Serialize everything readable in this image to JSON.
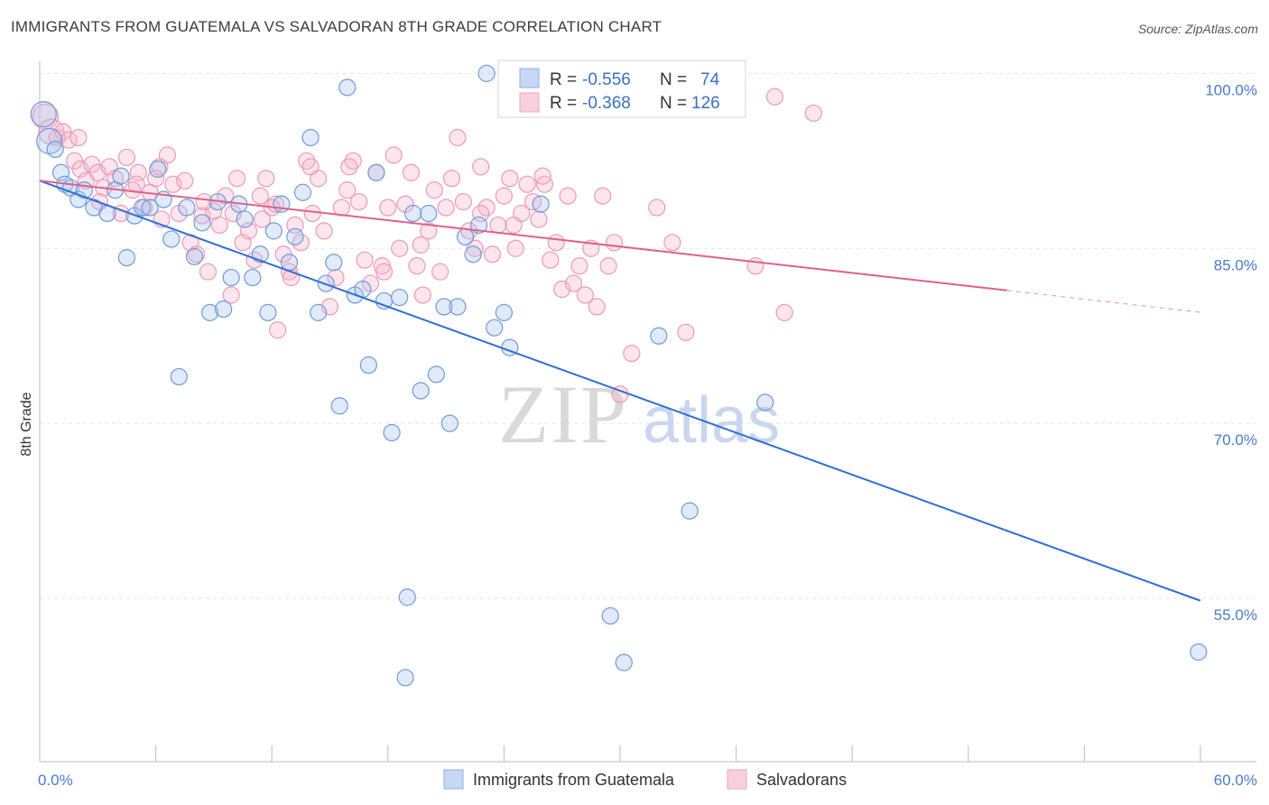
{
  "title": "IMMIGRANTS FROM GUATEMALA VS SALVADORAN 8TH GRADE CORRELATION CHART",
  "source": "Source: ZipAtlas.com",
  "watermark": {
    "part1": "ZIP",
    "part2": "atlas"
  },
  "colors": {
    "blue": "#5b8fd6",
    "blue_line": "#2f6fd0",
    "pink": "#ee93b2",
    "pink_line": "#e0608c",
    "grid": "#e3e3e3",
    "tick_text": "#4a7bc8"
  },
  "chart_data": {
    "type": "scatter",
    "title": "IMMIGRANTS FROM GUATEMALA VS SALVADORAN 8TH GRADE CORRELATION CHART",
    "xlabel": "",
    "ylabel": "8th Grade",
    "xlim": [
      0,
      60
    ],
    "ylim": [
      41,
      101.5
    ],
    "x_tick_labels": [
      {
        "value": 0,
        "label": "0.0%"
      },
      {
        "value": 60,
        "label": "60.0%"
      }
    ],
    "y_tick_labels": [
      {
        "value": 100,
        "label": "100.0%"
      },
      {
        "value": 85,
        "label": "85.0%"
      },
      {
        "value": 70,
        "label": "70.0%"
      },
      {
        "value": 55,
        "label": "55.0%"
      }
    ],
    "legend_position": "bottom",
    "stats": [
      {
        "r_label": "R = ",
        "r": "-0.556",
        "n_label": "N = ",
        "n": "74"
      },
      {
        "r_label": "R = ",
        "r": "-0.368",
        "n_label": "N = ",
        "n": "126"
      }
    ],
    "series": [
      {
        "name": "Immigrants from Guatemala",
        "color": "#5b8fd6",
        "trend": {
          "x0": 0,
          "y0": 90.8,
          "x1": 60,
          "y1": 54.8
        },
        "points": [
          [
            0.2,
            96.5
          ],
          [
            0.5,
            94.2
          ],
          [
            0.8,
            93.5
          ],
          [
            1.1,
            91.5
          ],
          [
            1.3,
            90.5
          ],
          [
            1.6,
            90.2
          ],
          [
            2.0,
            89.2
          ],
          [
            2.3,
            90.0
          ],
          [
            2.8,
            88.5
          ],
          [
            3.5,
            88.0
          ],
          [
            3.9,
            90.0
          ],
          [
            4.2,
            91.2
          ],
          [
            4.5,
            84.2
          ],
          [
            4.9,
            87.8
          ],
          [
            5.3,
            88.5
          ],
          [
            5.7,
            88.5
          ],
          [
            6.1,
            91.8
          ],
          [
            6.4,
            89.2
          ],
          [
            6.8,
            85.8
          ],
          [
            7.2,
            74.0
          ],
          [
            7.6,
            88.5
          ],
          [
            8.0,
            84.3
          ],
          [
            8.4,
            87.2
          ],
          [
            8.8,
            79.5
          ],
          [
            9.2,
            89.0
          ],
          [
            9.5,
            79.8
          ],
          [
            9.9,
            82.5
          ],
          [
            10.3,
            88.8
          ],
          [
            10.6,
            87.5
          ],
          [
            11.0,
            82.5
          ],
          [
            11.4,
            84.5
          ],
          [
            11.8,
            79.5
          ],
          [
            12.1,
            86.5
          ],
          [
            12.5,
            88.8
          ],
          [
            12.9,
            83.8
          ],
          [
            13.2,
            86.0
          ],
          [
            13.6,
            89.8
          ],
          [
            14.0,
            94.5
          ],
          [
            14.4,
            79.5
          ],
          [
            14.8,
            82.0
          ],
          [
            15.2,
            83.8
          ],
          [
            15.5,
            71.5
          ],
          [
            15.9,
            98.8
          ],
          [
            16.3,
            81.0
          ],
          [
            16.7,
            81.5
          ],
          [
            17.0,
            75.0
          ],
          [
            17.4,
            91.5
          ],
          [
            17.8,
            80.5
          ],
          [
            18.2,
            69.2
          ],
          [
            18.6,
            80.8
          ],
          [
            18.9,
            48.2
          ],
          [
            19.0,
            55.1
          ],
          [
            19.3,
            88.0
          ],
          [
            19.7,
            72.8
          ],
          [
            20.1,
            88.0
          ],
          [
            20.5,
            74.2
          ],
          [
            20.9,
            80.0
          ],
          [
            21.2,
            70.0
          ],
          [
            21.6,
            80.0
          ],
          [
            22.0,
            86.0
          ],
          [
            22.4,
            84.5
          ],
          [
            22.7,
            87.0
          ],
          [
            23.1,
            100.0
          ],
          [
            23.5,
            78.2
          ],
          [
            24.0,
            79.5
          ],
          [
            24.3,
            76.5
          ],
          [
            25.0,
            100.0
          ],
          [
            25.9,
            88.8
          ],
          [
            27.5,
            100.0
          ],
          [
            29.5,
            53.5
          ],
          [
            30.2,
            49.5
          ],
          [
            32.0,
            77.5
          ],
          [
            33.6,
            62.5
          ],
          [
            37.5,
            71.8
          ],
          [
            59.9,
            50.4
          ]
        ]
      },
      {
        "name": "Salvadorans",
        "color": "#ee93b2",
        "trend": {
          "x0": 0,
          "y0": 90.8,
          "x1": 50,
          "y1": 81.4
        },
        "points": [
          [
            0.3,
            96.3
          ],
          [
            0.6,
            95.0
          ],
          [
            0.9,
            94.5
          ],
          [
            1.2,
            95.0
          ],
          [
            1.5,
            94.3
          ],
          [
            1.8,
            92.5
          ],
          [
            2.1,
            91.8
          ],
          [
            2.4,
            90.8
          ],
          [
            2.7,
            92.2
          ],
          [
            3.0,
            91.5
          ],
          [
            3.3,
            90.2
          ],
          [
            3.6,
            92.0
          ],
          [
            3.9,
            91.0
          ],
          [
            4.2,
            88.0
          ],
          [
            4.5,
            92.8
          ],
          [
            4.8,
            90.0
          ],
          [
            5.1,
            91.5
          ],
          [
            5.4,
            88.5
          ],
          [
            5.7,
            89.8
          ],
          [
            6.0,
            91.0
          ],
          [
            6.3,
            87.5
          ],
          [
            6.6,
            93.0
          ],
          [
            6.9,
            90.5
          ],
          [
            7.2,
            88.0
          ],
          [
            7.5,
            90.8
          ],
          [
            7.8,
            85.5
          ],
          [
            8.1,
            84.5
          ],
          [
            8.4,
            87.8
          ],
          [
            8.7,
            83.0
          ],
          [
            9.0,
            88.2
          ],
          [
            9.3,
            87.0
          ],
          [
            9.6,
            89.5
          ],
          [
            9.9,
            81.0
          ],
          [
            10.2,
            91.0
          ],
          [
            10.5,
            85.5
          ],
          [
            10.8,
            86.5
          ],
          [
            11.1,
            84.0
          ],
          [
            11.4,
            89.5
          ],
          [
            11.7,
            91.0
          ],
          [
            12.0,
            88.5
          ],
          [
            12.3,
            78.0
          ],
          [
            12.6,
            84.5
          ],
          [
            12.9,
            83.0
          ],
          [
            13.2,
            87.0
          ],
          [
            13.5,
            85.5
          ],
          [
            13.8,
            92.5
          ],
          [
            14.1,
            88.0
          ],
          [
            14.4,
            91.0
          ],
          [
            14.7,
            86.5
          ],
          [
            15.0,
            80.0
          ],
          [
            15.3,
            82.5
          ],
          [
            15.6,
            88.5
          ],
          [
            15.9,
            90.0
          ],
          [
            16.2,
            92.5
          ],
          [
            16.5,
            89.0
          ],
          [
            16.8,
            84.0
          ],
          [
            17.1,
            82.0
          ],
          [
            17.4,
            91.5
          ],
          [
            17.7,
            83.5
          ],
          [
            18.0,
            88.5
          ],
          [
            18.3,
            93.0
          ],
          [
            18.6,
            85.0
          ],
          [
            18.9,
            88.8
          ],
          [
            19.2,
            91.5
          ],
          [
            19.5,
            83.5
          ],
          [
            19.8,
            81.0
          ],
          [
            20.1,
            86.5
          ],
          [
            20.4,
            90.0
          ],
          [
            20.7,
            83.0
          ],
          [
            21.0,
            88.5
          ],
          [
            21.3,
            91.0
          ],
          [
            21.6,
            94.5
          ],
          [
            21.9,
            89.0
          ],
          [
            22.2,
            86.5
          ],
          [
            22.5,
            85.0
          ],
          [
            22.8,
            92.0
          ],
          [
            23.1,
            88.5
          ],
          [
            23.4,
            84.5
          ],
          [
            23.7,
            87.0
          ],
          [
            24.0,
            89.5
          ],
          [
            24.3,
            91.0
          ],
          [
            24.6,
            85.0
          ],
          [
            24.9,
            88.0
          ],
          [
            25.2,
            90.5
          ],
          [
            25.5,
            89.0
          ],
          [
            25.8,
            87.5
          ],
          [
            26.1,
            90.5
          ],
          [
            26.4,
            84.0
          ],
          [
            26.7,
            85.5
          ],
          [
            27.0,
            81.5
          ],
          [
            27.3,
            89.5
          ],
          [
            27.6,
            82.0
          ],
          [
            27.9,
            83.5
          ],
          [
            28.2,
            81.0
          ],
          [
            28.5,
            85.0
          ],
          [
            28.8,
            80.0
          ],
          [
            29.1,
            89.5
          ],
          [
            29.4,
            83.5
          ],
          [
            29.7,
            85.5
          ],
          [
            30.0,
            72.5
          ],
          [
            30.6,
            76.0
          ],
          [
            31.9,
            88.5
          ],
          [
            32.7,
            85.5
          ],
          [
            33.4,
            77.8
          ],
          [
            37.0,
            83.5
          ],
          [
            38.0,
            98.0
          ],
          [
            38.5,
            79.5
          ],
          [
            40.0,
            96.6
          ],
          [
            6.2,
            92.0
          ],
          [
            5.0,
            90.5
          ],
          [
            3.1,
            89.0
          ],
          [
            16.0,
            92.0
          ],
          [
            14.0,
            92.0
          ],
          [
            11.5,
            87.5
          ],
          [
            10.0,
            88.0
          ],
          [
            22.8,
            88.0
          ],
          [
            13.0,
            82.5
          ],
          [
            17.8,
            83.0
          ],
          [
            19.7,
            85.3
          ],
          [
            8.5,
            89.0
          ],
          [
            2.0,
            94.5
          ],
          [
            26.0,
            91.2
          ],
          [
            24.5,
            87.0
          ],
          [
            12.2,
            88.8
          ]
        ]
      }
    ]
  }
}
